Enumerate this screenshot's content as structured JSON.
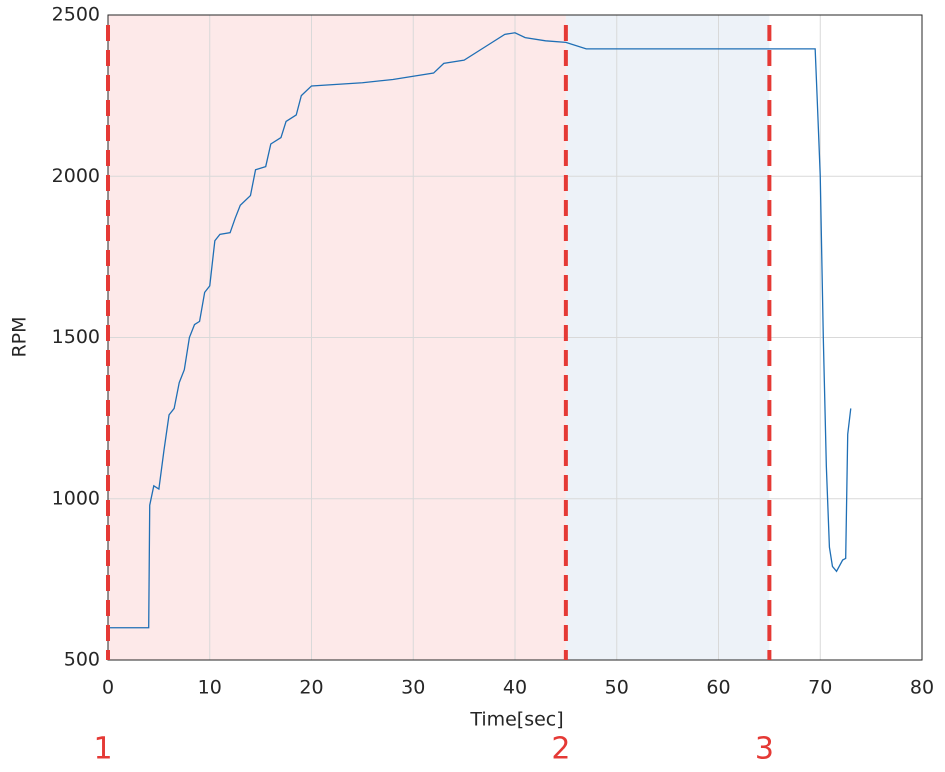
{
  "chart_data": {
    "type": "line",
    "x_label": "Time[sec]",
    "y_label": "RPM",
    "x": [
      0,
      4,
      4.1,
      4.5,
      5,
      5.5,
      6,
      6.5,
      7,
      7.5,
      8,
      8.5,
      9,
      9.5,
      10,
      10.5,
      11,
      12,
      12.5,
      13,
      14,
      14.5,
      15.5,
      16,
      17,
      17.5,
      18.5,
      19,
      20,
      25,
      28,
      30,
      32,
      33,
      35,
      37,
      39,
      40,
      41,
      43,
      45,
      47,
      50,
      55,
      60,
      65,
      69.5,
      69.7,
      70,
      70.3,
      70.6,
      70.9,
      71.2,
      71.6,
      72.2,
      72.5,
      72.7,
      73
    ],
    "values": [
      600,
      600,
      980,
      1040,
      1030,
      1150,
      1260,
      1280,
      1360,
      1400,
      1500,
      1540,
      1550,
      1640,
      1660,
      1800,
      1820,
      1825,
      1870,
      1910,
      1940,
      2020,
      2030,
      2100,
      2120,
      2170,
      2190,
      2250,
      2280,
      2290,
      2300,
      2310,
      2320,
      2350,
      2360,
      2400,
      2440,
      2445,
      2430,
      2420,
      2415,
      2395,
      2395,
      2395,
      2395,
      2395,
      2395,
      2240,
      2000,
      1500,
      1100,
      850,
      790,
      775,
      810,
      815,
      1200,
      1280
    ],
    "color": "#1f6fb5",
    "xlim": [
      0,
      80
    ],
    "xticks": [
      0,
      10,
      20,
      30,
      40,
      50,
      60,
      70,
      80
    ],
    "ylim": [
      500,
      2500
    ],
    "yticks": [
      500,
      1000,
      1500,
      2000,
      2500
    ],
    "grid": true,
    "regions": [
      {
        "xmin": 0,
        "xmax": 45,
        "color": "#fde9e9"
      },
      {
        "xmin": 45,
        "xmax": 65,
        "color": "#edf2f8"
      }
    ],
    "markers": [
      {
        "x": 0,
        "text": "1"
      },
      {
        "x": 45,
        "text": "2"
      },
      {
        "x": 65,
        "text": "3"
      }
    ],
    "marker_color": "#e53935"
  }
}
